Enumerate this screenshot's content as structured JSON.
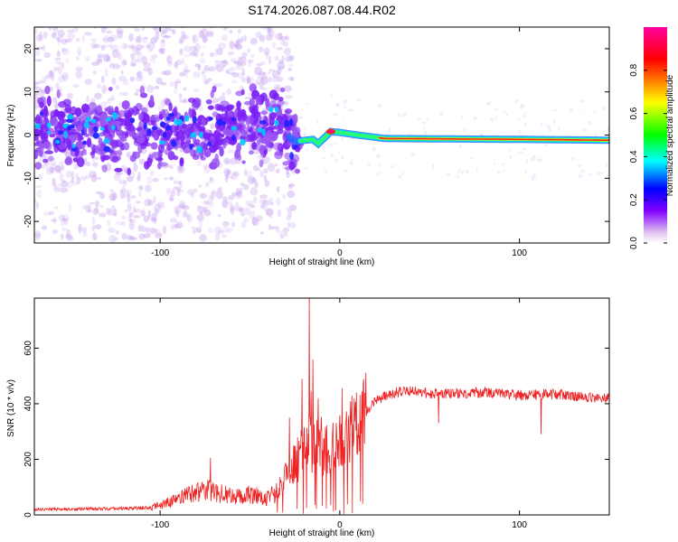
{
  "chart_data": [
    {
      "type": "heatmap",
      "title": "S174.2026.087.08.44.R02",
      "xlabel": "Height of straight line (km)",
      "ylabel": "Frequency (Hz)",
      "xlim": [
        -170,
        150
      ],
      "ylim": [
        -25,
        25
      ],
      "x_ticks": [
        -100,
        0,
        100
      ],
      "x_tick_labels": [
        "-100",
        "0",
        "100"
      ],
      "y_ticks": [
        -20,
        -10,
        0,
        10,
        20
      ],
      "y_tick_labels": [
        "-20",
        "-10",
        "0",
        "10",
        "20"
      ],
      "colorbar": {
        "label": "Normalized spectral amplitude",
        "range": [
          0,
          1
        ],
        "ticks": [
          0.0,
          0.2,
          0.4,
          0.6,
          0.8
        ],
        "tick_labels": [
          "0.0",
          "0.2",
          "0.4",
          "0.6",
          "0.8"
        ],
        "colors": [
          "#ffffff",
          "#e0c0f0",
          "#8000ff",
          "#0000ff",
          "#00ffff",
          "#00ff00",
          "#ffff00",
          "#ff0000",
          "#ff00a0"
        ]
      },
      "band_centerline": [
        {
          "x": -170,
          "f": 1.5
        },
        {
          "x": -140,
          "f": 0.5
        },
        {
          "x": -110,
          "f": 1.0
        },
        {
          "x": -80,
          "f": 0.5
        },
        {
          "x": -50,
          "f": 2.5
        },
        {
          "x": -35,
          "f": 2.0
        },
        {
          "x": -25,
          "f": -1.5
        },
        {
          "x": -15,
          "f": -1.0
        },
        {
          "x": -12,
          "f": -2.0
        },
        {
          "x": -5,
          "f": 0.8
        },
        {
          "x": 0,
          "f": 0.6
        },
        {
          "x": 10,
          "f": 0.0
        },
        {
          "x": 25,
          "f": -0.8
        },
        {
          "x": 60,
          "f": -0.9
        },
        {
          "x": 100,
          "f": -1.0
        },
        {
          "x": 150,
          "f": -1.2
        }
      ]
    },
    {
      "type": "line",
      "xlabel": "Height of straight line (km)",
      "ylabel": "SNR (10 * v/v)",
      "xlim": [
        -170,
        150
      ],
      "ylim": [
        0,
        780
      ],
      "color": "#ee2222",
      "x_ticks": [
        -100,
        0,
        100
      ],
      "x_tick_labels": [
        "-100",
        "0",
        "100"
      ],
      "y_ticks": [
        0,
        200,
        400,
        600
      ],
      "y_tick_labels": [
        "0",
        "200",
        "400",
        "600"
      ],
      "envelope": [
        {
          "x": -170,
          "y": 20
        },
        {
          "x": -130,
          "y": 22
        },
        {
          "x": -105,
          "y": 25
        },
        {
          "x": -95,
          "y": 45
        },
        {
          "x": -85,
          "y": 70
        },
        {
          "x": -75,
          "y": 90
        },
        {
          "x": -65,
          "y": 75
        },
        {
          "x": -55,
          "y": 65
        },
        {
          "x": -48,
          "y": 75
        },
        {
          "x": -42,
          "y": 55
        },
        {
          "x": -35,
          "y": 80
        },
        {
          "x": -30,
          "y": 140
        },
        {
          "x": -25,
          "y": 190
        },
        {
          "x": -20,
          "y": 230
        },
        {
          "x": -15,
          "y": 260
        },
        {
          "x": -10,
          "y": 230
        },
        {
          "x": -5,
          "y": 235
        },
        {
          "x": 0,
          "y": 260
        },
        {
          "x": 5,
          "y": 290
        },
        {
          "x": 10,
          "y": 330
        },
        {
          "x": 15,
          "y": 375
        },
        {
          "x": 20,
          "y": 410
        },
        {
          "x": 25,
          "y": 430
        },
        {
          "x": 35,
          "y": 445
        },
        {
          "x": 45,
          "y": 440
        },
        {
          "x": 60,
          "y": 435
        },
        {
          "x": 80,
          "y": 440
        },
        {
          "x": 100,
          "y": 430
        },
        {
          "x": 120,
          "y": 435
        },
        {
          "x": 135,
          "y": 425
        },
        {
          "x": 150,
          "y": 420
        }
      ],
      "spikes": [
        {
          "x": -17,
          "y": 780
        },
        {
          "x": -21,
          "y": 490
        },
        {
          "x": -15,
          "y": 560
        },
        {
          "x": -28,
          "y": 350
        },
        {
          "x": -12,
          "y": 420
        },
        {
          "x": -72,
          "y": 205
        },
        {
          "x": 55,
          "y": 330
        },
        {
          "x": 112,
          "y": 290
        }
      ]
    }
  ]
}
